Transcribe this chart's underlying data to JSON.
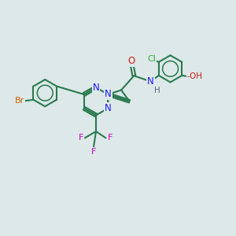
{
  "bg_color": "#dde8e8",
  "bond_color": "#2a7a50",
  "bond_width": 1.5,
  "atom_colors": {
    "N": "#1a1aee",
    "O": "#cc1a1a",
    "Br": "#cc6600",
    "Cl": "#33aa33",
    "F": "#cc00cc",
    "H": "#556677",
    "C": "#2a7a50"
  },
  "fs": 8.5
}
